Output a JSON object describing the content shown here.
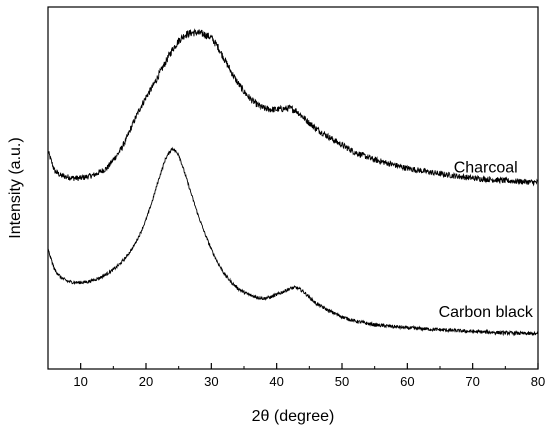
{
  "chart_data": {
    "type": "line",
    "title": "",
    "xlabel": "2θ (degree)",
    "ylabel": "Intensity (a.u.)",
    "xlim": [
      5,
      80
    ],
    "xticks": [
      10,
      20,
      30,
      40,
      50,
      60,
      70,
      80
    ],
    "yticks_shown": false,
    "grid": false,
    "legend": "none",
    "series": [
      {
        "name": "Charcoal",
        "color": "#000000",
        "x": [
          5,
          6,
          7,
          8,
          9,
          10,
          12,
          14,
          16,
          17,
          18,
          19,
          20,
          21,
          22,
          23,
          24,
          25,
          26,
          27,
          28,
          29,
          30,
          31,
          32,
          33,
          34,
          35,
          36,
          37,
          38,
          39,
          40,
          41,
          42,
          43,
          44,
          45,
          46,
          48,
          50,
          52,
          55,
          60,
          65,
          70,
          75,
          80
        ],
        "y": [
          1.1,
          0.78,
          0.7,
          0.68,
          0.66,
          0.66,
          0.71,
          0.82,
          1.1,
          1.3,
          1.55,
          1.78,
          1.98,
          2.15,
          2.35,
          2.55,
          2.75,
          2.9,
          3.0,
          3.03,
          3.03,
          3.0,
          2.95,
          2.8,
          2.6,
          2.4,
          2.22,
          2.07,
          1.95,
          1.86,
          1.8,
          1.78,
          1.78,
          1.79,
          1.8,
          1.76,
          1.66,
          1.56,
          1.47,
          1.33,
          1.2,
          1.08,
          0.96,
          0.82,
          0.73,
          0.66,
          0.62,
          0.59
        ],
        "label_x": 72,
        "label_y": 0.75
      },
      {
        "name": "Carbon black",
        "color": "#000000",
        "x": [
          5,
          6,
          7,
          8,
          9,
          10,
          11,
          12,
          13,
          14,
          15,
          16,
          17,
          18,
          19,
          20,
          21,
          22,
          23,
          24,
          25,
          26,
          27,
          28,
          29,
          30,
          31,
          32,
          33,
          34,
          35,
          36,
          37,
          38,
          39,
          40,
          41,
          42,
          43,
          44,
          45,
          46,
          48,
          50,
          52,
          55,
          60,
          65,
          70,
          75,
          80
        ],
        "y": [
          -0.5,
          -0.83,
          -0.96,
          -1.02,
          -1.04,
          -1.04,
          -1.03,
          -1.0,
          -0.96,
          -0.9,
          -0.83,
          -0.74,
          -0.62,
          -0.47,
          -0.27,
          -0.02,
          0.3,
          0.66,
          0.98,
          1.15,
          1.05,
          0.72,
          0.38,
          0.05,
          -0.24,
          -0.5,
          -0.72,
          -0.9,
          -1.03,
          -1.13,
          -1.2,
          -1.25,
          -1.28,
          -1.3,
          -1.28,
          -1.24,
          -1.19,
          -1.14,
          -1.12,
          -1.18,
          -1.28,
          -1.38,
          -1.5,
          -1.6,
          -1.67,
          -1.73,
          -1.78,
          -1.81,
          -1.84,
          -1.86,
          -1.88
        ],
        "label_x": 72,
        "label_y": -1.6
      }
    ]
  }
}
